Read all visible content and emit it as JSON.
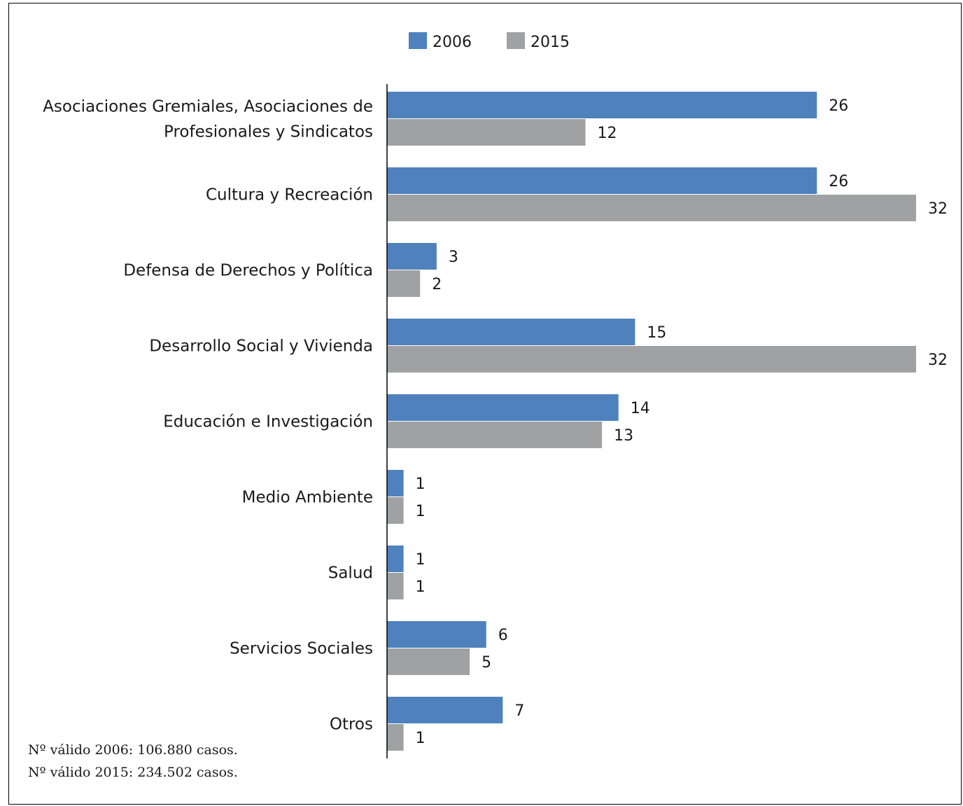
{
  "chart_data": {
    "type": "bar",
    "orientation": "horizontal",
    "categories": [
      [
        "Asociaciones Gremiales, Asociaciones de",
        "Profesionales y Sindicatos"
      ],
      [
        "Cultura y Recreación"
      ],
      [
        "Defensa de Derechos y Política"
      ],
      [
        "Desarrollo Social y Vivienda"
      ],
      [
        "Educación e Investigación"
      ],
      [
        "Medio Ambiente"
      ],
      [
        "Salud"
      ],
      [
        "Servicios Sociales"
      ],
      [
        "Otros"
      ]
    ],
    "series": [
      {
        "name": "2006",
        "color": "#4f81bd",
        "values": [
          26,
          26,
          3,
          15,
          14,
          1,
          1,
          6,
          7
        ]
      },
      {
        "name": "2015",
        "color": "#a0a1a3",
        "values": [
          12,
          32,
          2,
          32,
          13,
          1,
          1,
          5,
          1
        ]
      }
    ],
    "xlim": [
      0,
      32
    ],
    "grid": false,
    "legend": "top-center",
    "data_labels": true
  },
  "notes": [
    "Nº válido 2006: 106.880 casos.",
    "Nº válido 2015: 234.502 casos."
  ]
}
